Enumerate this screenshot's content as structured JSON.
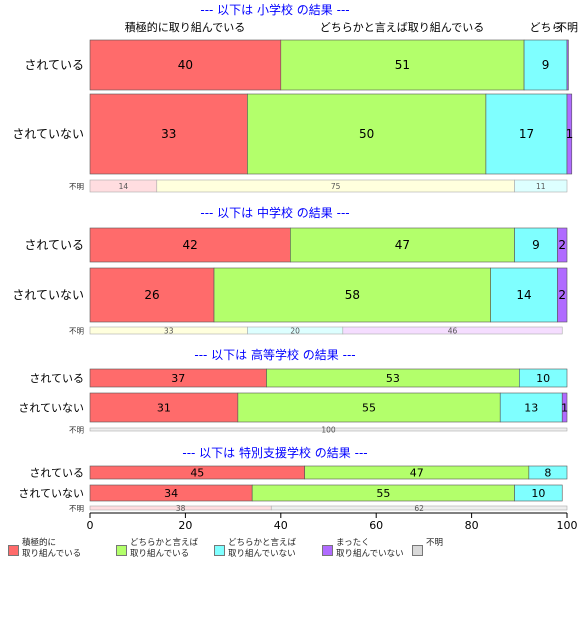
{
  "chart_data": {
    "type": "bar",
    "orientation": "horizontal",
    "stacked": true,
    "xlim": [
      0,
      100
    ],
    "xticks": [
      "0",
      "20",
      "40",
      "60",
      "80",
      "100"
    ],
    "grid": false,
    "legend_position": "bottom",
    "colors": {
      "active": "#ff6b6b",
      "somewhat_active": "#b3ff6b",
      "somewhat_inactive": "#7fffff",
      "not_active": "#b06bff",
      "unknown": "#d9d9d9",
      "title": "#0000ff"
    },
    "series": [
      {
        "key": "active",
        "name": "積極的に\n取り組んでいる"
      },
      {
        "key": "somewhat_active",
        "name": "どちらかと言えば\n取り組んでいる"
      },
      {
        "key": "somewhat_inactive",
        "name": "どちらかと言えば\n取り組んでいない"
      },
      {
        "key": "not_active",
        "name": "まったく\n取り組んでいない"
      },
      {
        "key": "unknown",
        "name": "不明"
      }
    ],
    "panels": [
      {
        "title": "--- 以下は 小学校 の結果 ---",
        "top_labels": [
          "積極的に取り組んでいる",
          "どちらかと言えば取り組んでいる",
          "どちら",
          "不明"
        ],
        "rows": [
          {
            "label": "されている",
            "values": [
              40,
              51,
              9,
              0.3,
              0
            ],
            "labels": [
              "40",
              "51",
              "9",
              "",
              ""
            ]
          },
          {
            "label": "されていない",
            "values": [
              33,
              50,
              17,
              1,
              0
            ],
            "labels": [
              "33",
              "50",
              "17",
              "1",
              ""
            ]
          },
          {
            "label": "不明",
            "thin": true,
            "segments": [
              {
                "value": 14,
                "color": "#ffdde0",
                "text": "14"
              },
              {
                "value": 75,
                "color": "#ffffdd",
                "text": "75"
              },
              {
                "value": 11,
                "color": "#ddffff",
                "text": "11"
              }
            ]
          }
        ]
      },
      {
        "title": "--- 以下は 中学校 の結果 ---",
        "rows": [
          {
            "label": "されている",
            "values": [
              42,
              47,
              9,
              2,
              0
            ],
            "labels": [
              "42",
              "47",
              "9",
              "2",
              ""
            ]
          },
          {
            "label": "されていない",
            "values": [
              26,
              58,
              14,
              2,
              0
            ],
            "labels": [
              "26",
              "58",
              "14",
              "2",
              ""
            ]
          },
          {
            "label": "不明",
            "thin": true,
            "segments": [
              {
                "value": 33,
                "color": "#ffffdd",
                "text": "33"
              },
              {
                "value": 20,
                "color": "#ddffff",
                "text": "20"
              },
              {
                "value": 46,
                "color": "#f5ddff",
                "text": "46"
              }
            ]
          }
        ]
      },
      {
        "title": "--- 以下は 高等学校 の結果 ---",
        "rows": [
          {
            "label": "されている",
            "values": [
              37,
              53,
              10,
              0,
              0
            ],
            "labels": [
              "37",
              "53",
              "10",
              "",
              ""
            ]
          },
          {
            "label": "されていない",
            "values": [
              31,
              55,
              13,
              1,
              0
            ],
            "labels": [
              "31",
              "55",
              "13",
              "1",
              ""
            ]
          },
          {
            "label": "不明",
            "thin": true,
            "segments": [
              {
                "value": 100,
                "color": "#eeeeee",
                "text": "100"
              }
            ]
          }
        ]
      },
      {
        "title": "--- 以下は 特別支援学校 の結果 ---",
        "rows": [
          {
            "label": "されている",
            "values": [
              45,
              47,
              8,
              0,
              0
            ],
            "labels": [
              "45",
              "47",
              "8",
              "",
              ""
            ]
          },
          {
            "label": "されていない",
            "values": [
              34,
              55,
              10,
              0,
              0
            ],
            "labels": [
              "34",
              "55",
              "10",
              "",
              ""
            ]
          },
          {
            "label": "不明",
            "thin": true,
            "segments": [
              {
                "value": 38,
                "color": "#ffdde0",
                "text": "38"
              },
              {
                "value": 62,
                "color": "#eeeeee",
                "text": "62"
              }
            ]
          }
        ]
      }
    ]
  }
}
